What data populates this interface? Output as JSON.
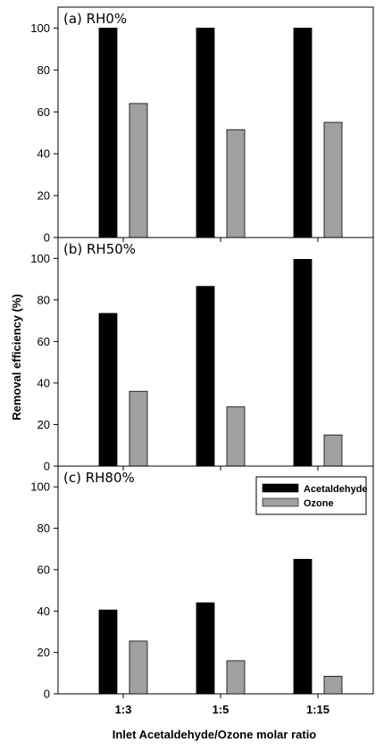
{
  "chart_data": {
    "type": "bar",
    "categories": [
      "1:3",
      "1:5",
      "1:15"
    ],
    "xlabel": "Inlet Acetaldehyde/Ozone molar ratio",
    "ylabel": "Removal efficiency (%)",
    "ylim": [
      0,
      110
    ],
    "yticks": [
      0,
      20,
      40,
      60,
      80,
      100
    ],
    "legend": {
      "placement": "top-right",
      "panel": 2,
      "entries": [
        {
          "name": "Acetaldehyde",
          "color": "#000000"
        },
        {
          "name": "Ozone",
          "color": "#a0a0a0"
        }
      ]
    },
    "panels": [
      {
        "label": "(a) RH0%",
        "series": [
          {
            "name": "Acetaldehyde",
            "color": "#000000",
            "values": [
              100,
              100,
              100
            ]
          },
          {
            "name": "Ozone",
            "color": "#a0a0a0",
            "values": [
              64,
              51.5,
              55
            ]
          }
        ]
      },
      {
        "label": "(b) RH50%",
        "series": [
          {
            "name": "Acetaldehyde",
            "color": "#000000",
            "values": [
              73.5,
              86.5,
              99.5
            ]
          },
          {
            "name": "Ozone",
            "color": "#a0a0a0",
            "values": [
              36,
              28.5,
              15
            ]
          }
        ]
      },
      {
        "label": "(c) RH80%",
        "series": [
          {
            "name": "Acetaldehyde",
            "color": "#000000",
            "values": [
              40.5,
              44,
              65
            ]
          },
          {
            "name": "Ozone",
            "color": "#a0a0a0",
            "values": [
              25.5,
              16,
              8.5
            ]
          }
        ]
      }
    ]
  }
}
